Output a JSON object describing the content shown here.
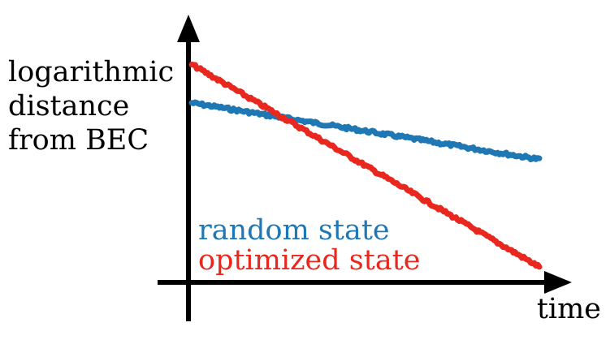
{
  "chart_data": {
    "type": "line",
    "ylabel": [
      "logarithmic",
      "distance",
      "from BEC"
    ],
    "xlabel": "time",
    "xlim": [
      0,
      1
    ],
    "ylim": [
      0,
      1
    ],
    "grid": false,
    "legend_placement": "bottom-left",
    "series": [
      {
        "name": "random state",
        "color": "#1f77b4",
        "x": [
          0,
          1
        ],
        "y": [
          0.7,
          0.48
        ]
      },
      {
        "name": "optimized state",
        "color": "#e8281e",
        "x": [
          0,
          1
        ],
        "y": [
          0.85,
          0.06
        ]
      }
    ]
  }
}
